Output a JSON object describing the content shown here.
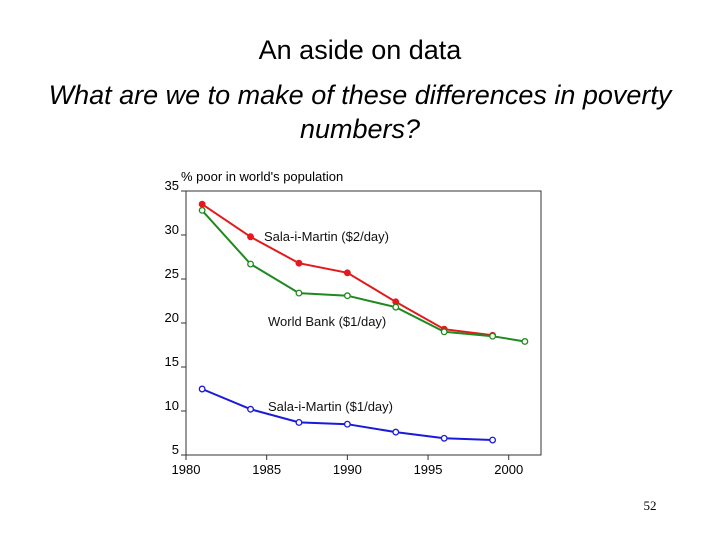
{
  "slide": {
    "title": "An aside on data",
    "subtitle": "What are we to make of these differences in poverty numbers?",
    "page_number": "52"
  },
  "chart_data": {
    "type": "line",
    "title": "",
    "xlabel": "",
    "ylabel": "% poor in world's population",
    "xlim": [
      1980,
      2002
    ],
    "ylim": [
      5,
      35
    ],
    "xticks": [
      1980,
      1985,
      1990,
      1995,
      2000
    ],
    "yticks": [
      5,
      10,
      15,
      20,
      25,
      30,
      35
    ],
    "grid": false,
    "series": [
      {
        "name": "Sala-i-Martin ($2/day)",
        "color": "#e31a1c",
        "marker": "filled-circle",
        "x": [
          1981,
          1984,
          1987,
          1990,
          1993,
          1996,
          1999
        ],
        "y": [
          33.5,
          29.8,
          26.8,
          25.7,
          22.4,
          19.3,
          18.6
        ]
      },
      {
        "name": "World Bank ($1/day)",
        "color": "#1f8a1f",
        "marker": "open-circle",
        "x": [
          1981,
          1984,
          1987,
          1990,
          1993,
          1996,
          1999,
          2001
        ],
        "y": [
          32.8,
          26.7,
          23.4,
          23.1,
          21.8,
          19.0,
          18.5,
          17.9
        ]
      },
      {
        "name": "Sala-i-Martin ($1/day)",
        "color": "#1a1adb",
        "marker": "open-circle",
        "x": [
          1981,
          1984,
          1987,
          1990,
          1993,
          1996,
          1999
        ],
        "y": [
          12.5,
          10.2,
          8.7,
          8.5,
          7.6,
          6.9,
          6.7
        ]
      }
    ]
  }
}
